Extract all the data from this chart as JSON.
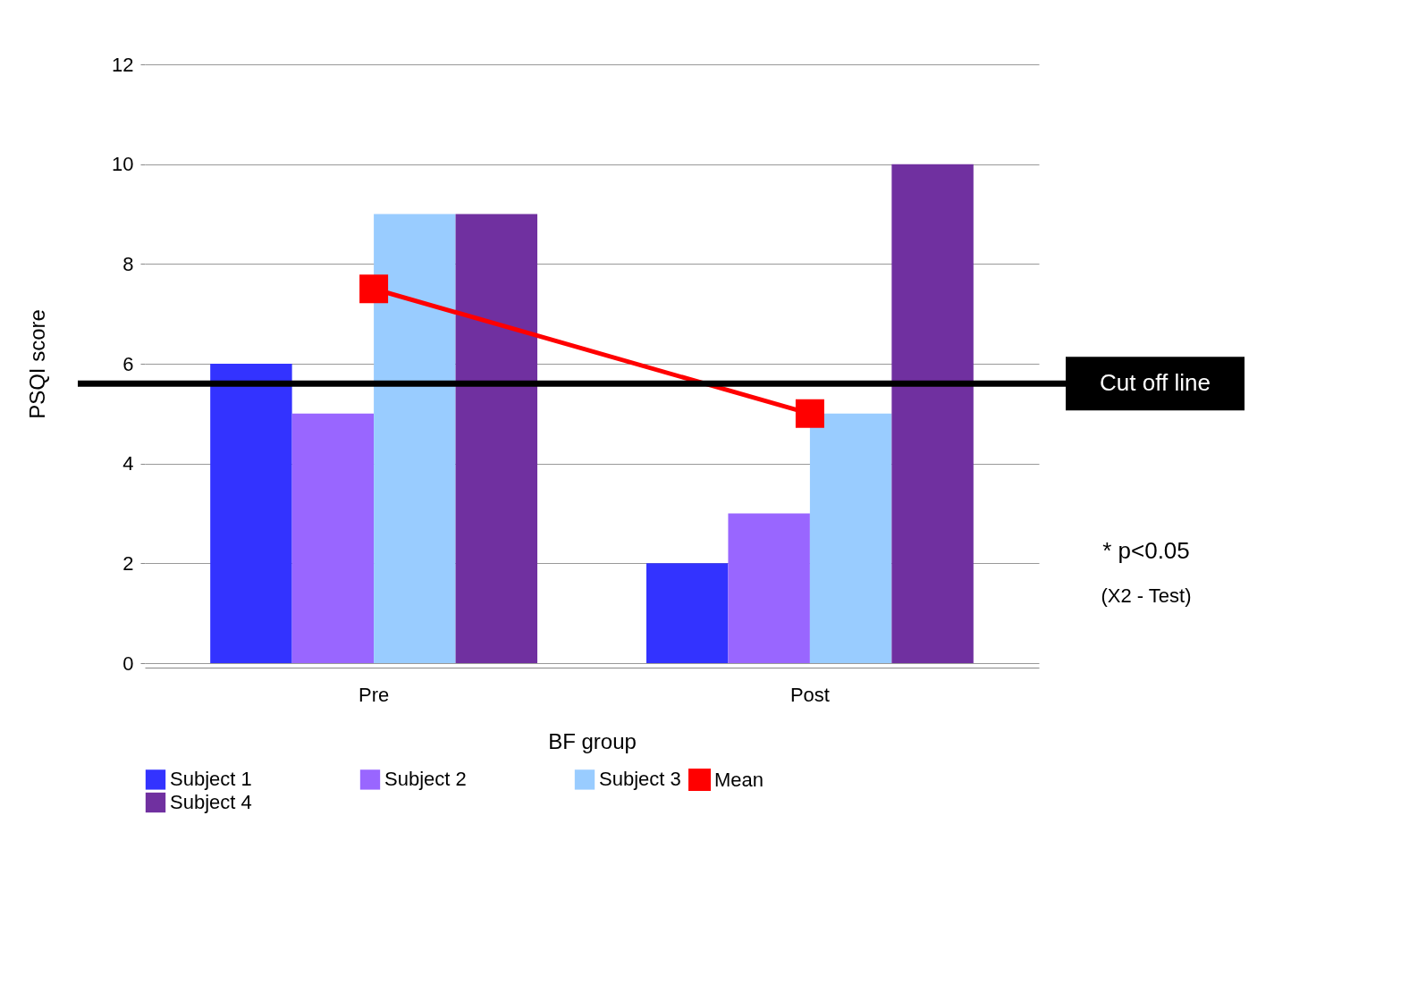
{
  "chart_data": {
    "type": "bar",
    "xlabel": "BF group",
    "ylabel": "PSQI  score",
    "categories": [
      "Pre",
      "Post"
    ],
    "series": [
      {
        "name": "Subject 1",
        "color": "#3333ff",
        "values": [
          6,
          2
        ]
      },
      {
        "name": "Subject 2",
        "color": "#9966ff",
        "values": [
          5,
          3
        ]
      },
      {
        "name": "Subject 3",
        "color": "#99ccff",
        "values": [
          9,
          5
        ]
      },
      {
        "name": "Subject 4",
        "color": "#7030a0",
        "values": [
          9,
          10
        ]
      },
      {
        "name": "Mean",
        "color": "#ff0000",
        "type": "line",
        "marker": "square",
        "values": [
          7.5,
          5
        ]
      }
    ],
    "ylim": [
      0,
      12
    ],
    "yticks": [
      0,
      2,
      4,
      6,
      8,
      10,
      12
    ],
    "grid": "y",
    "legend": "bottom",
    "ref_lines": [
      {
        "axis": "y",
        "value": 5.6,
        "label": "Cut off line",
        "color": "#000000"
      }
    ],
    "annotations": [
      "* p<0.05",
      "(X2 - Test)"
    ]
  }
}
